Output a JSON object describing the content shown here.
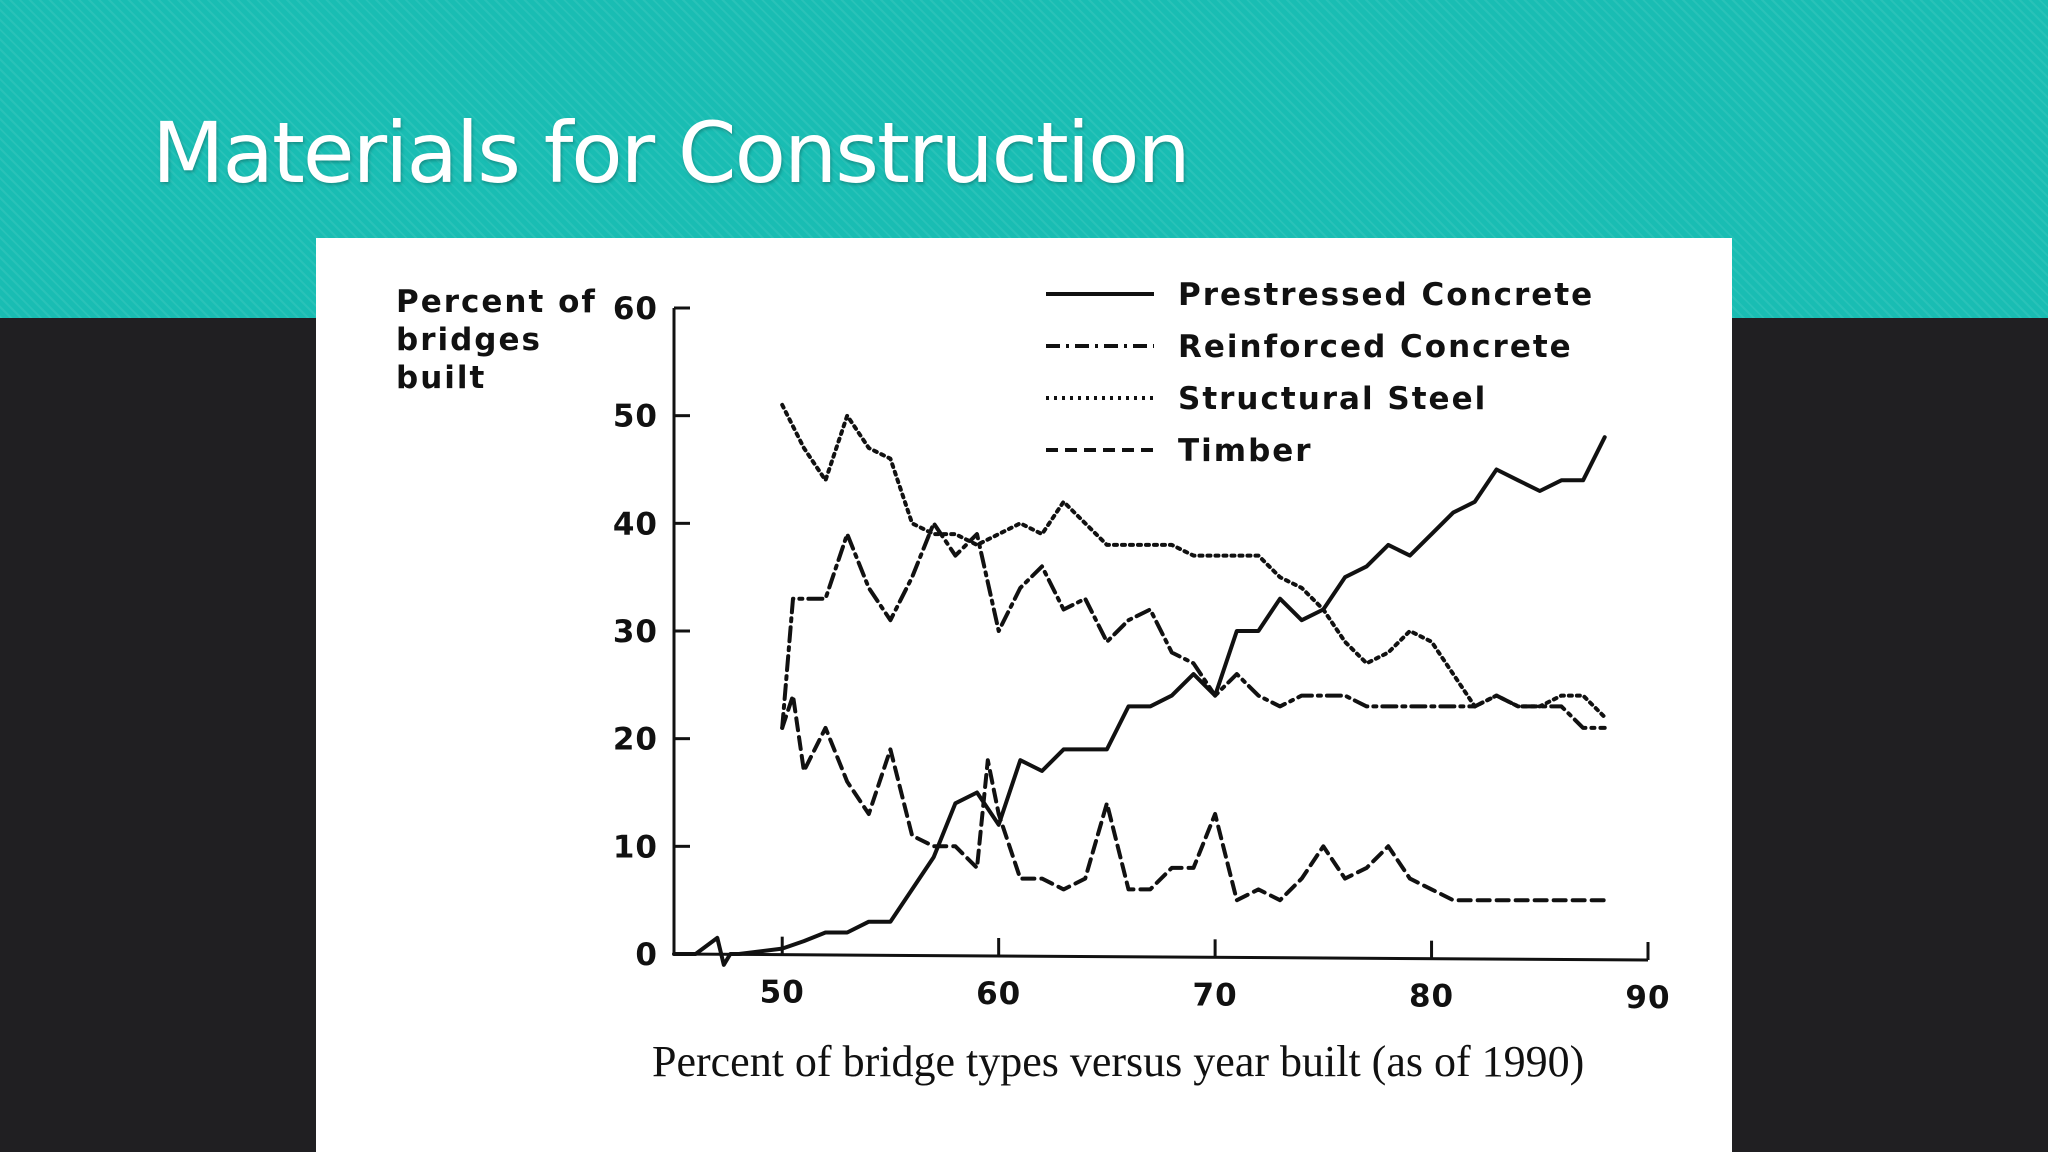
{
  "slide": {
    "title": "Materials for Construction"
  },
  "colors": {
    "banner": "#19bdb3",
    "background": "#201f22",
    "panel": "#ffffff",
    "ink": "#111111"
  },
  "chart_data": {
    "type": "line",
    "title": "",
    "caption": "Percent of bridge types versus year built (as of 1990)",
    "ylabel_lines": [
      "Percent of",
      "bridges",
      "built"
    ],
    "xlabel": "",
    "xlim": [
      45,
      90
    ],
    "ylim": [
      0,
      60
    ],
    "x_ticks": [
      50,
      60,
      70,
      80,
      90
    ],
    "y_ticks": [
      0,
      10,
      20,
      30,
      40,
      50,
      60
    ],
    "legend_position": "top-right",
    "grid": false,
    "series": [
      {
        "name": "Prestressed Concrete",
        "style": "solid",
        "x": [
          45,
          46,
          47,
          47.3,
          47.6,
          48,
          50,
          51,
          52,
          53,
          54,
          55,
          56,
          57,
          58,
          59,
          60,
          61,
          62,
          63,
          64,
          65,
          66,
          67,
          68,
          69,
          70,
          71,
          72,
          73,
          74,
          75,
          76,
          77,
          78,
          79,
          80,
          81,
          82,
          83,
          84,
          85,
          86,
          87,
          88
        ],
        "y": [
          0,
          0,
          1.5,
          -1,
          0,
          0,
          0.5,
          1.2,
          2,
          2,
          3,
          3,
          6,
          9,
          14,
          15,
          12,
          18,
          17,
          19,
          19,
          19,
          23,
          23,
          24,
          26,
          24,
          30,
          30,
          33,
          31,
          32,
          35,
          36,
          38,
          37,
          39,
          41,
          42,
          45,
          44,
          43,
          44,
          44,
          48
        ]
      },
      {
        "name": "Reinforced Concrete",
        "style": "dash-dot",
        "x": [
          50,
          50.5,
          51,
          52,
          53,
          54,
          55,
          56,
          57,
          58,
          59,
          60,
          61,
          62,
          63,
          64,
          65,
          66,
          67,
          68,
          69,
          70,
          71,
          72,
          73,
          74,
          75,
          76,
          77,
          78,
          79,
          80,
          81,
          82,
          83,
          84,
          85,
          86,
          87,
          88
        ],
        "y": [
          21,
          33,
          33,
          33,
          39,
          34,
          31,
          35,
          40,
          37,
          39,
          30,
          34,
          36,
          32,
          33,
          29,
          31,
          32,
          28,
          27,
          24,
          26,
          24,
          23,
          24,
          24,
          24,
          23,
          23,
          23,
          23,
          23,
          23,
          24,
          23,
          23,
          23,
          21,
          21
        ]
      },
      {
        "name": "Structural Steel",
        "style": "dotted",
        "x": [
          50,
          51,
          52,
          53,
          54,
          55,
          56,
          57,
          58,
          59,
          60,
          61,
          62,
          63,
          64,
          65,
          66,
          67,
          68,
          69,
          70,
          71,
          72,
          73,
          74,
          75,
          76,
          77,
          78,
          79,
          80,
          81,
          82,
          83,
          84,
          85,
          86,
          87,
          88
        ],
        "y": [
          51,
          47,
          44,
          50,
          47,
          46,
          40,
          39,
          39,
          38,
          39,
          40,
          39,
          42,
          40,
          38,
          38,
          38,
          38,
          37,
          37,
          37,
          37,
          35,
          34,
          32,
          29,
          27,
          28,
          30,
          29,
          26,
          23,
          24,
          23,
          23,
          24,
          24,
          22
        ]
      },
      {
        "name": "Timber",
        "style": "dashed",
        "x": [
          50,
          50.5,
          51,
          52,
          53,
          54,
          55,
          56,
          57,
          58,
          59,
          59.5,
          60,
          61,
          62,
          63,
          64,
          65,
          66,
          67,
          68,
          69,
          70,
          71,
          72,
          73,
          74,
          75,
          76,
          77,
          78,
          79,
          80,
          81,
          82,
          83,
          84,
          85,
          86,
          87,
          88
        ],
        "y": [
          21,
          24,
          17,
          21,
          16,
          13,
          19,
          11,
          10,
          10,
          8,
          18,
          13,
          7,
          7,
          6,
          7,
          14,
          6,
          6,
          8,
          8,
          13,
          5,
          6,
          5,
          7,
          10,
          7,
          8,
          10,
          7,
          6,
          5,
          5,
          5,
          5,
          5,
          5,
          5,
          5
        ]
      }
    ]
  }
}
